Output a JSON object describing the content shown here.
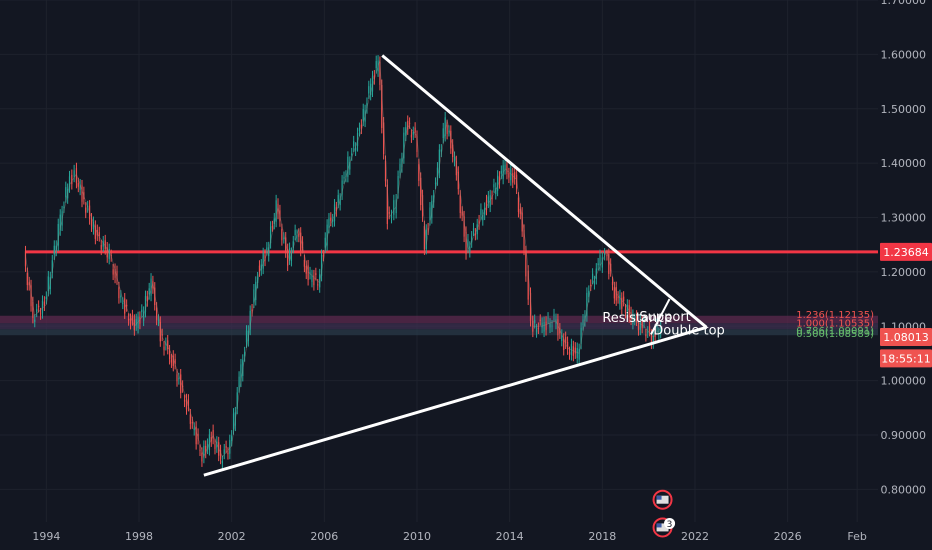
{
  "chart_data": {
    "type": "line",
    "title": "",
    "xlabel": "",
    "ylabel": "",
    "x_range": [
      1992.0,
      2029.9
    ],
    "ylim": [
      0.74,
      1.7
    ],
    "x_ticks": [
      "1994",
      "1998",
      "2002",
      "2006",
      "2010",
      "2014",
      "2018",
      "2022",
      "2026",
      "Feb"
    ],
    "x_tick_values": [
      1994,
      1998,
      2002,
      2006,
      2010,
      2014,
      2018,
      2022,
      2026,
      2029.0
    ],
    "y_ticks": [
      "0.80000",
      "0.90000",
      "1.00000",
      "1.10000",
      "1.20000",
      "1.30000",
      "1.40000",
      "1.50000",
      "1.60000",
      "1.70000"
    ],
    "y_tick_values": [
      0.8,
      0.9,
      1.0,
      1.1,
      1.2,
      1.3,
      1.4,
      1.5,
      1.6,
      1.7
    ],
    "grid": true,
    "series": [
      {
        "values_x": [
          1993.1,
          1993.5,
          1994.0,
          1994.6,
          1995.0,
          1995.3,
          1995.7,
          1996.2,
          1996.8,
          1997.3,
          1997.8,
          1998.2,
          1998.6,
          1999.0,
          1999.4,
          1999.8,
          2000.3,
          2000.8,
          2001.2,
          2001.6,
          2002.0,
          2002.4,
          2002.8,
          2003.2,
          2003.6,
          2004.0,
          2004.5,
          2004.9,
          2005.3,
          2005.8,
          2006.2,
          2006.6,
          2007.1,
          2007.6,
          2008.0,
          2008.4,
          2008.8,
          2009.1,
          2009.6,
          2010.0,
          2010.4,
          2010.8,
          2011.3,
          2011.7,
          2012.2,
          2012.6,
          2013.0,
          2013.4,
          2013.8,
          2014.3,
          2014.7,
          2015.0,
          2015.4,
          2016.0,
          2016.5,
          2017.0,
          2017.5,
          2017.9,
          2018.2,
          2018.6,
          2019.0,
          2019.4,
          2019.8,
          2020.2,
          2020.6
        ],
        "values_y": [
          1.23,
          1.12,
          1.14,
          1.28,
          1.36,
          1.38,
          1.33,
          1.27,
          1.23,
          1.15,
          1.1,
          1.12,
          1.18,
          1.08,
          1.05,
          1.0,
          0.93,
          0.86,
          0.9,
          0.86,
          0.88,
          1.0,
          1.1,
          1.2,
          1.24,
          1.32,
          1.22,
          1.28,
          1.2,
          1.18,
          1.28,
          1.32,
          1.4,
          1.46,
          1.53,
          1.59,
          1.3,
          1.32,
          1.47,
          1.45,
          1.25,
          1.35,
          1.48,
          1.4,
          1.24,
          1.28,
          1.32,
          1.35,
          1.39,
          1.37,
          1.25,
          1.1,
          1.1,
          1.11,
          1.06,
          1.05,
          1.17,
          1.21,
          1.24,
          1.16,
          1.14,
          1.11,
          1.1,
          1.08,
          1.1
        ],
        "color": "#26a69a"
      }
    ],
    "trendlines": [
      {
        "from": [
          2008.5,
          1.598
        ],
        "to": [
          2022.5,
          1.098
        ],
        "color": "#ffffff"
      },
      {
        "from": [
          2000.8,
          0.826
        ],
        "to": [
          2022.5,
          1.098
        ],
        "color": "#ffffff"
      }
    ],
    "horizontal_line": {
      "y": 1.23684,
      "color": "#f23645"
    },
    "zones": [
      {
        "y_top": 1.1193,
        "y_bottom": 1.1055,
        "color": "#5c2a4e"
      },
      {
        "y_top": 1.1055,
        "y_bottom": 1.0945,
        "color": "#3c2f4f"
      },
      {
        "y_top": 1.0945,
        "y_bottom": 1.0835,
        "color": "#2a3a48"
      }
    ],
    "annotations": [
      {
        "text": "Resistance",
        "x": 2018.0,
        "y": 1.108
      },
      {
        "text": "Support",
        "x": 2019.6,
        "y": 1.11
      },
      {
        "text": "Double top",
        "x": 2020.2,
        "y": 1.085
      }
    ],
    "right_labels": [
      {
        "text": "1.23684",
        "y": 1.23684,
        "bg": "#f23645"
      },
      {
        "text": "1.08013",
        "y": 1.08013,
        "bg": "#ef5350"
      },
      {
        "text": "18:55:11",
        "y": 1.041,
        "bg": "#ef5350"
      }
    ],
    "fib_labels": [
      {
        "text": "1.236(1.12135)",
        "y": 1.121,
        "color": "#ef5350"
      },
      {
        "text": "1.000(1.10535)",
        "y": 1.1055,
        "color": "#ef5350"
      },
      {
        "text": "0.786(1.09091)",
        "y": 1.091,
        "color": "#66bb6a"
      },
      {
        "text": "0.500(1.08589)",
        "y": 1.086,
        "color": "#66bb6a"
      }
    ],
    "event_badges": [
      {
        "x": 2020.6,
        "y": 0.781,
        "count": ""
      },
      {
        "x": 2020.6,
        "y": 0.73,
        "count": "3"
      }
    ]
  }
}
